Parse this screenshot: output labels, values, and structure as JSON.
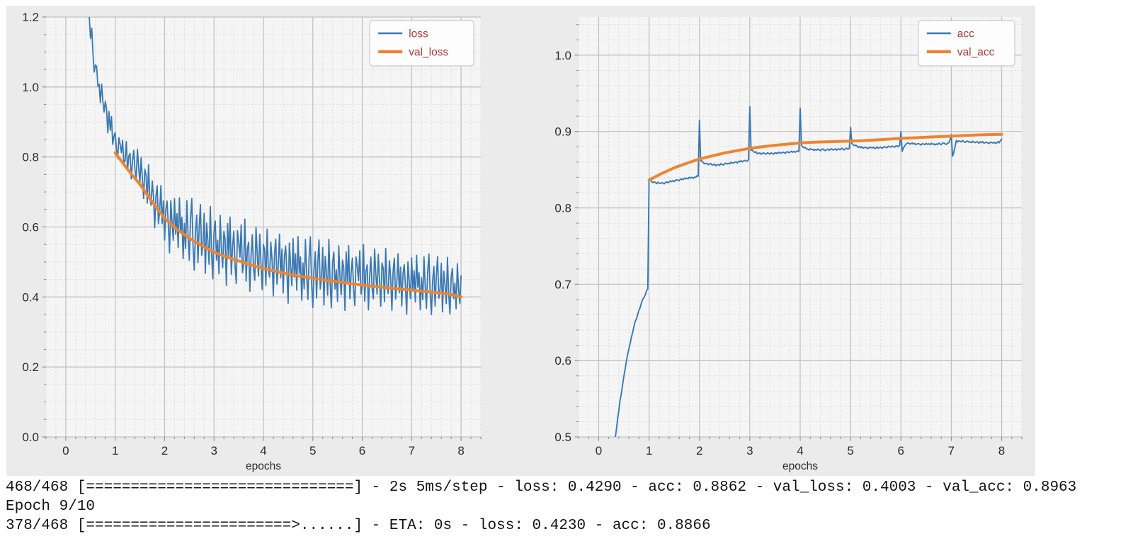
{
  "page": {
    "background": "#ffffff"
  },
  "figure": {
    "background": "#ebebeb"
  },
  "colors": {
    "blue": "#3a78b3",
    "orange": "#ef8430",
    "legend_text": "#ab3e38",
    "legend_bg": "#fdfdfd",
    "legend_border": "#c9c9c9",
    "grid_major": "#c2c2c2",
    "grid_minor": "#dcdcdc",
    "tick_mark": "#8a8a8a",
    "tick_text": "#2b2b2b",
    "axes_bg": "#f5f5f5"
  },
  "noise_pattern": [
    0.2,
    -0.52,
    0.88,
    -0.1,
    -0.8,
    0.42,
    1.0,
    -0.3,
    -1.0,
    0.12,
    0.6,
    -0.72,
    0.3,
    0.95,
    -0.45,
    -0.15,
    0.75,
    -0.9,
    0.5,
    0.05,
    -0.6,
    1.0,
    -0.25,
    -0.95,
    0.35,
    0.65,
    -0.4,
    0.15,
    -0.75,
    0.85,
    -0.05,
    -0.55,
    0.45,
    0.25,
    -1.0,
    0.7,
    -0.2,
    0.9,
    -0.65,
    0.1,
    0.55,
    -0.35,
    -0.85,
    0.6,
    0.3,
    -0.1,
    0.8,
    -0.5,
    -0.25,
    1.0,
    -0.7,
    0.2,
    0.4,
    -0.95,
    0.05,
    0.65,
    -0.3,
    -0.6,
    0.9,
    0.15,
    -0.45,
    0.75,
    -0.05,
    -0.8,
    0.5,
    0.35,
    -0.65,
    0.95,
    -0.2,
    -0.4,
    0.6,
    0.1,
    -0.9,
    0.3,
    0.7,
    -0.55,
    -0.05,
    0.85,
    -0.35,
    0.45,
    -0.75,
    0.25,
    0.55,
    -0.15,
    -1.0,
    0.65,
    0.05,
    -0.5,
    0.8,
    -0.25,
    0.4,
    -0.6,
    0.9,
    -0.12,
    0.35,
    -0.85
  ],
  "chart_data": [
    {
      "type": "line",
      "name": "loss-chart",
      "title": "",
      "xlabel": "epochs",
      "ylabel": "",
      "xlim": [
        -0.4,
        8.4
      ],
      "ylim": [
        0.0,
        1.2
      ],
      "xticks": [
        0,
        1,
        2,
        3,
        4,
        5,
        6,
        7,
        8
      ],
      "xtick_labels": [
        "0",
        "1",
        "2",
        "3",
        "4",
        "5",
        "6",
        "7",
        "8"
      ],
      "yticks": [
        0.0,
        0.2,
        0.4,
        0.6,
        0.8,
        1.0,
        1.2
      ],
      "ytick_labels": [
        "0.0",
        "0.2",
        "0.4",
        "0.6",
        "0.8",
        "1.0",
        "1.2"
      ],
      "minor_x_step": 0.2,
      "minor_y_step": 0.05,
      "grid": true,
      "legend": {
        "position": "upper right",
        "entries": [
          {
            "label": "loss",
            "color": "blue",
            "swatch_width": 2.4
          },
          {
            "label": "val_loss",
            "color": "orange",
            "swatch_width": 4.2
          }
        ]
      },
      "series": [
        {
          "name": "loss",
          "color": "blue",
          "width": 1.8,
          "kind": "noisy",
          "x_start": 0.0,
          "x_end": 8.0,
          "step": 0.025,
          "noise_offset": 0,
          "trend": [
            [
              0.0,
              2.4
            ],
            [
              0.1,
              2.0
            ],
            [
              0.2,
              1.75
            ],
            [
              0.3,
              1.52
            ],
            [
              0.4,
              1.32
            ],
            [
              0.5,
              1.16
            ],
            [
              0.6,
              1.05
            ],
            [
              0.7,
              0.985
            ],
            [
              0.8,
              0.94
            ],
            [
              0.9,
              0.885
            ],
            [
              1.0,
              0.845
            ],
            [
              1.2,
              0.8
            ],
            [
              1.4,
              0.78
            ],
            [
              1.6,
              0.73
            ],
            [
              1.8,
              0.67
            ],
            [
              2.0,
              0.63
            ],
            [
              2.25,
              0.6
            ],
            [
              2.5,
              0.585
            ],
            [
              2.75,
              0.565
            ],
            [
              3.0,
              0.55
            ],
            [
              3.5,
              0.525
            ],
            [
              4.0,
              0.5
            ],
            [
              4.5,
              0.487
            ],
            [
              5.0,
              0.47
            ],
            [
              5.5,
              0.462
            ],
            [
              6.0,
              0.455
            ],
            [
              6.5,
              0.448
            ],
            [
              7.0,
              0.44
            ],
            [
              7.5,
              0.435
            ],
            [
              8.0,
              0.425
            ]
          ],
          "noise_amp": [
            [
              0.0,
              0.02
            ],
            [
              0.5,
              0.035
            ],
            [
              0.9,
              0.045
            ],
            [
              1.2,
              0.045
            ],
            [
              1.6,
              0.07
            ],
            [
              2.0,
              0.09
            ],
            [
              2.5,
              0.1
            ],
            [
              3.0,
              0.105
            ],
            [
              3.5,
              0.105
            ],
            [
              4.0,
              0.1
            ],
            [
              4.5,
              0.105
            ],
            [
              5.0,
              0.1
            ],
            [
              5.5,
              0.1
            ],
            [
              6.0,
              0.095
            ],
            [
              6.5,
              0.095
            ],
            [
              7.0,
              0.09
            ],
            [
              7.5,
              0.085
            ],
            [
              8.0,
              0.08
            ]
          ]
        },
        {
          "name": "val_loss",
          "color": "orange",
          "width": 4.0,
          "kind": "points",
          "points": [
            [
              1.0,
              0.812
            ],
            [
              1.25,
              0.765
            ],
            [
              1.5,
              0.722
            ],
            [
              1.75,
              0.672
            ],
            [
              2.0,
              0.625
            ],
            [
              2.25,
              0.593
            ],
            [
              2.5,
              0.568
            ],
            [
              2.75,
              0.547
            ],
            [
              3.0,
              0.528
            ],
            [
              3.25,
              0.5145
            ],
            [
              3.5,
              0.503
            ],
            [
              3.75,
              0.4915
            ],
            [
              4.0,
              0.4815
            ],
            [
              4.25,
              0.473
            ],
            [
              4.5,
              0.4655
            ],
            [
              4.75,
              0.459
            ],
            [
              5.0,
              0.4535
            ],
            [
              5.25,
              0.448
            ],
            [
              5.5,
              0.4435
            ],
            [
              5.75,
              0.4385
            ],
            [
              6.0,
              0.434
            ],
            [
              6.25,
              0.43
            ],
            [
              6.5,
              0.4265
            ],
            [
              6.75,
              0.423
            ],
            [
              7.0,
              0.4195
            ],
            [
              7.25,
              0.416
            ],
            [
              7.5,
              0.4125
            ],
            [
              7.75,
              0.4085
            ],
            [
              8.0,
              0.4003
            ]
          ]
        }
      ]
    },
    {
      "type": "line",
      "name": "accuracy-chart",
      "title": "",
      "xlabel": "epochs",
      "ylabel": "",
      "xlim": [
        -0.4,
        8.4
      ],
      "ylim": [
        0.5,
        1.05
      ],
      "xticks": [
        0,
        1,
        2,
        3,
        4,
        5,
        6,
        7,
        8
      ],
      "xtick_labels": [
        "0",
        "1",
        "2",
        "3",
        "4",
        "5",
        "6",
        "7",
        "8"
      ],
      "yticks": [
        0.5,
        0.6,
        0.7,
        0.8,
        0.9,
        1.0
      ],
      "ytick_labels": [
        "0.5",
        "0.6",
        "0.7",
        "0.8",
        "0.9",
        "1.0"
      ],
      "minor_x_step": 0.2,
      "minor_y_step": 0.02,
      "grid": true,
      "legend": {
        "position": "upper right",
        "entries": [
          {
            "label": "acc",
            "color": "blue",
            "swatch_width": 2.4
          },
          {
            "label": "val_acc",
            "color": "orange",
            "swatch_width": 4.2
          }
        ]
      },
      "series": [
        {
          "name": "acc",
          "color": "blue",
          "width": 1.9,
          "kind": "noisy",
          "x_start": 0.275,
          "x_end": 8.0,
          "step": 0.025,
          "noise_offset": 31,
          "trend": [
            [
              0.275,
              0.462
            ],
            [
              0.33,
              0.5
            ],
            [
              0.42,
              0.545
            ],
            [
              0.55,
              0.6
            ],
            [
              0.7,
              0.645
            ],
            [
              0.85,
              0.676
            ],
            [
              0.975,
              0.694
            ],
            [
              1.0,
              0.8365
            ],
            [
              1.05,
              0.8345
            ],
            [
              1.15,
              0.8325
            ],
            [
              1.3,
              0.8325
            ],
            [
              1.5,
              0.8355
            ],
            [
              1.7,
              0.838
            ],
            [
              1.9,
              0.84
            ],
            [
              1.975,
              0.8415
            ],
            [
              2.0,
              0.9155
            ],
            [
              2.025,
              0.861
            ],
            [
              2.15,
              0.8575
            ],
            [
              2.35,
              0.856
            ],
            [
              2.6,
              0.8585
            ],
            [
              2.85,
              0.861
            ],
            [
              2.975,
              0.8625
            ],
            [
              3.0,
              0.932
            ],
            [
              3.025,
              0.8755
            ],
            [
              3.15,
              0.8715
            ],
            [
              3.4,
              0.871
            ],
            [
              3.7,
              0.8725
            ],
            [
              3.975,
              0.874
            ],
            [
              4.0,
              0.932
            ],
            [
              4.025,
              0.881
            ],
            [
              4.15,
              0.8765
            ],
            [
              4.4,
              0.876
            ],
            [
              4.7,
              0.8765
            ],
            [
              4.975,
              0.8775
            ],
            [
              5.0,
              0.9065
            ],
            [
              5.025,
              0.8835
            ],
            [
              5.2,
              0.879
            ],
            [
              5.5,
              0.8785
            ],
            [
              5.8,
              0.88
            ],
            [
              5.975,
              0.881
            ],
            [
              6.0,
              0.9
            ],
            [
              6.025,
              0.8745
            ],
            [
              6.1,
              0.8845
            ],
            [
              6.35,
              0.8835
            ],
            [
              6.7,
              0.8835
            ],
            [
              6.95,
              0.8845
            ],
            [
              7.0,
              0.8955
            ],
            [
              7.025,
              0.8665
            ],
            [
              7.1,
              0.8875
            ],
            [
              7.35,
              0.8865
            ],
            [
              7.65,
              0.8855
            ],
            [
              7.875,
              0.885
            ],
            [
              7.95,
              0.886
            ],
            [
              8.0,
              0.8895
            ]
          ],
          "noise_amp": [
            [
              0.275,
              0.0012
            ],
            [
              8.0,
              0.0012
            ]
          ]
        },
        {
          "name": "val_acc",
          "color": "orange",
          "width": 4.0,
          "kind": "points",
          "points": [
            [
              1.0,
              0.8365
            ],
            [
              1.25,
              0.845
            ],
            [
              1.5,
              0.8525
            ],
            [
              1.75,
              0.8585
            ],
            [
              2.0,
              0.864
            ],
            [
              2.25,
              0.868
            ],
            [
              2.5,
              0.872
            ],
            [
              2.75,
              0.875
            ],
            [
              3.0,
              0.878
            ],
            [
              3.25,
              0.88
            ],
            [
              3.5,
              0.882
            ],
            [
              3.75,
              0.8835
            ],
            [
              4.0,
              0.885
            ],
            [
              4.25,
              0.886
            ],
            [
              4.5,
              0.8865
            ],
            [
              4.75,
              0.887
            ],
            [
              5.0,
              0.8875
            ],
            [
              5.25,
              0.888
            ],
            [
              5.5,
              0.889
            ],
            [
              5.75,
              0.89
            ],
            [
              6.0,
              0.891
            ],
            [
              6.25,
              0.8918
            ],
            [
              6.5,
              0.8925
            ],
            [
              6.75,
              0.8933
            ],
            [
              7.0,
              0.894
            ],
            [
              7.25,
              0.8948
            ],
            [
              7.5,
              0.8955
            ],
            [
              7.75,
              0.896
            ],
            [
              8.0,
              0.8963
            ]
          ]
        }
      ]
    }
  ],
  "console": {
    "lines": [
      "468/468 [==============================] - 2s 5ms/step - loss: 0.4290 - acc: 0.8862 - val_loss: 0.4003 - val_acc: 0.8963",
      "Epoch 9/10",
      "378/468 [=======================>......] - ETA: 0s - loss: 0.4230 - acc: 0.8866"
    ]
  }
}
